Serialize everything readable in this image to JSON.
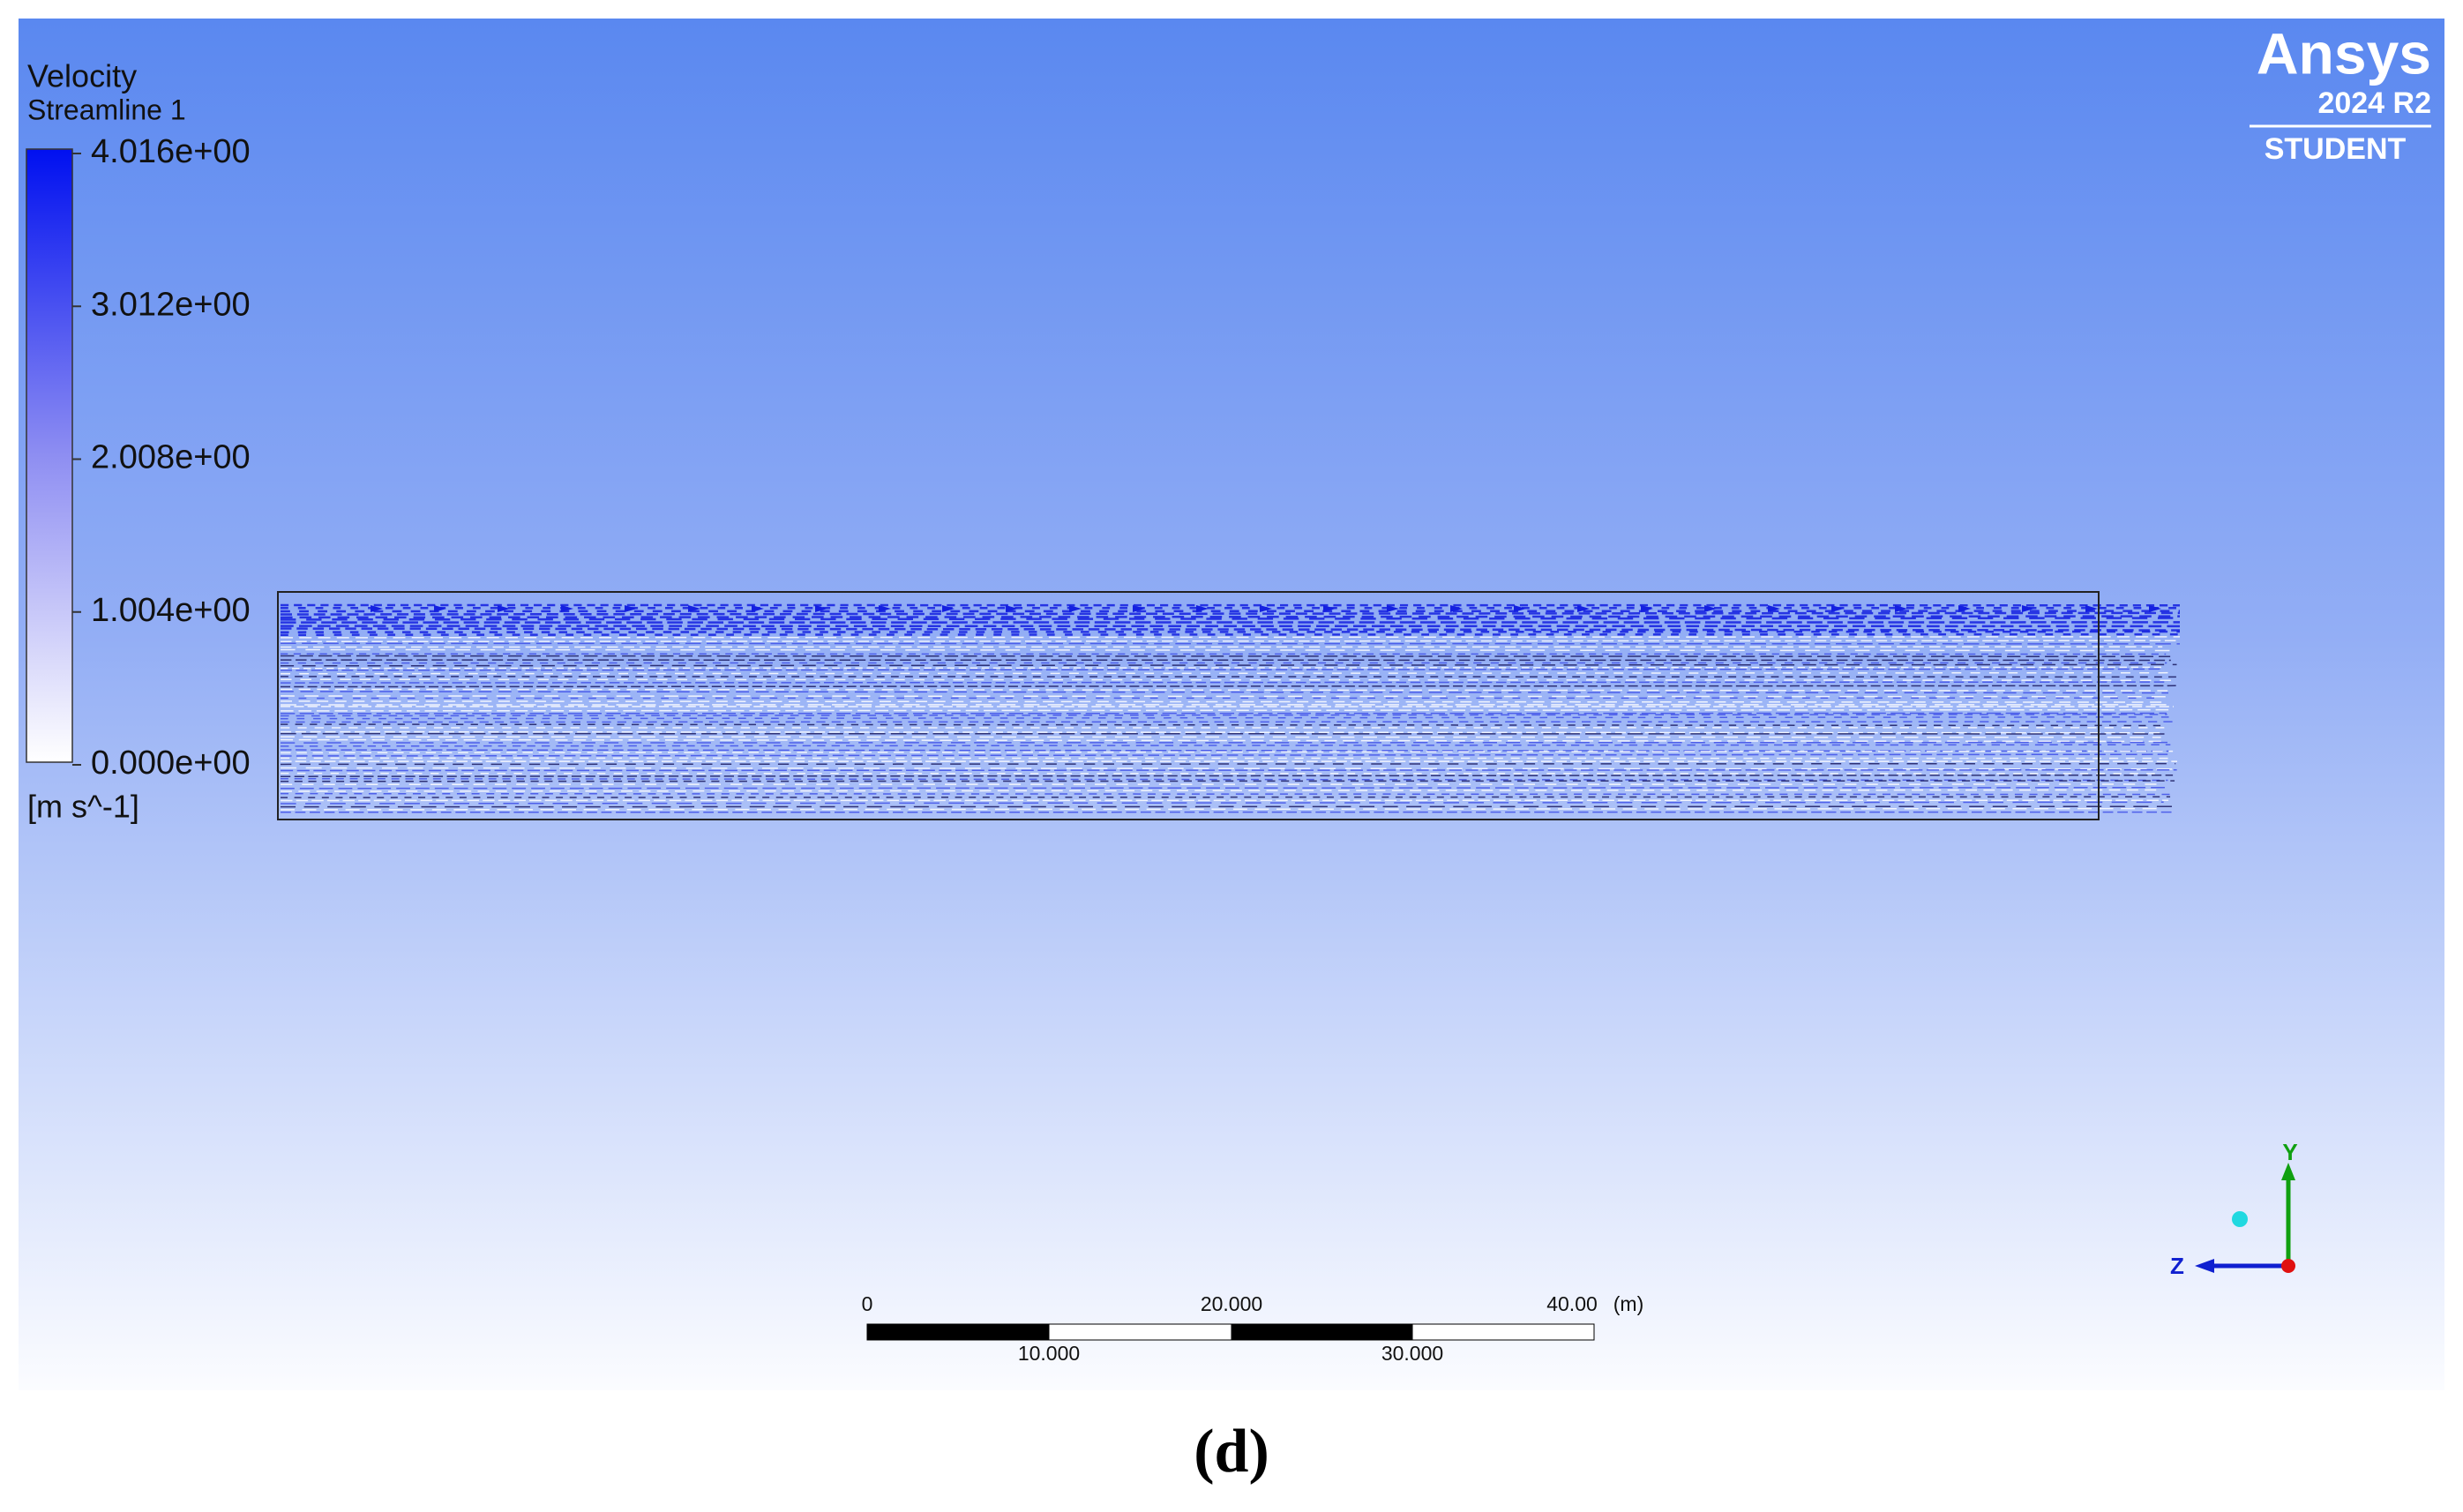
{
  "legend": {
    "title": "Velocity",
    "subtitle": "Streamline 1",
    "ticks": [
      "4.016e+00",
      "3.012e+00",
      "2.008e+00",
      "1.004e+00",
      "0.000e+00"
    ],
    "unit": "[m s^-1]"
  },
  "logo": {
    "brand": "Ansys",
    "version": "2024 R2",
    "edition": "STUDENT"
  },
  "scale_bar": {
    "top_labels": [
      "0",
      "20.000",
      "40.00"
    ],
    "unit": "(m)",
    "bottom_labels": [
      "10.000",
      "30.000"
    ]
  },
  "triad": {
    "y_label": "Y",
    "z_label": "Z"
  },
  "caption": "(d)"
}
